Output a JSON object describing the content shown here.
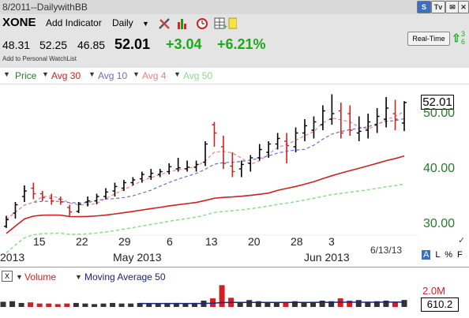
{
  "window": {
    "title": "8/2011--DailywithBB"
  },
  "window_buttons": {
    "s": "S",
    "tv": "Tv",
    "chat": "✉",
    "close": "✕"
  },
  "toolbar": {
    "symbol": "XONE",
    "add_indicator": "Add Indicator",
    "period": "Daily",
    "tools": [
      "wrench-screwdriver-icon",
      "bar-chart-icon",
      "alarm-clock-icon",
      "grid-add-icon",
      "sticky-note-icon"
    ]
  },
  "quote": {
    "open": "48.31",
    "high": "52.25",
    "low": "46.85",
    "last": "52.01",
    "change": "+3.04",
    "change_pct": "+6.21%",
    "watchlist_link": "Add to Personal WatchList",
    "realtime_button": "Real-Time",
    "realtime_small": [
      "3",
      "6"
    ],
    "up_color": "#1aaa1a"
  },
  "legend": {
    "price": {
      "label": "Price",
      "color": "#2a7a2a"
    },
    "avg30": {
      "label": "Avg 30",
      "color": "#cc2222"
    },
    "avg10": {
      "label": "Avg 10",
      "color": "#6a6ad8"
    },
    "avg4": {
      "label": "Avg 4",
      "color": "#f08080"
    },
    "avg50": {
      "label": "Avg 50",
      "color": "#88dd88"
    }
  },
  "main_chart": {
    "last_price_label": "52.01",
    "price_labels": [
      "50.00",
      "40.00",
      "30.00"
    ],
    "date_labels": [
      "15",
      "22",
      "29",
      "6",
      "13",
      "20",
      "28",
      "3"
    ],
    "month_labels": [
      "2013",
      "May 2013",
      "Jun 2013"
    ],
    "asof": "6/13/13",
    "scale_opts": {
      "a": "A",
      "l": "L",
      "pct": "%",
      "f": "F"
    }
  },
  "volume_panel": {
    "close_glyph": "X",
    "volume_label": "Volume",
    "ma_label": "Moving Average 50",
    "vol_color": "#cc2222",
    "ma_color": "#1a237e",
    "value_labels": [
      "2.0M",
      "610.2"
    ]
  },
  "chart_data": {
    "type": "ohlc",
    "x": [
      "4/11",
      "4/12",
      "4/15",
      "4/16",
      "4/17",
      "4/18",
      "4/19",
      "4/22",
      "4/23",
      "4/24",
      "4/25",
      "4/26",
      "4/29",
      "4/30",
      "5/1",
      "5/2",
      "5/3",
      "5/6",
      "5/7",
      "5/8",
      "5/9",
      "5/10",
      "5/13",
      "5/14",
      "5/15",
      "5/16",
      "5/17",
      "5/20",
      "5/21",
      "5/22",
      "5/23",
      "5/24",
      "5/28",
      "5/29",
      "5/30",
      "5/31",
      "6/3",
      "6/4",
      "6/5",
      "6/6",
      "6/7",
      "6/10",
      "6/11",
      "6/12",
      "6/13"
    ],
    "open": [
      29.6,
      32,
      35,
      36.5,
      35.5,
      34.7,
      34.5,
      33,
      32.3,
      34,
      34.2,
      35,
      36,
      36.5,
      37.5,
      38.2,
      38.6,
      39,
      39.5,
      40,
      40,
      40.3,
      41.2,
      48,
      44,
      40.5,
      40,
      41,
      42,
      43,
      44.5,
      45,
      44,
      46.5,
      47,
      48,
      49,
      50.5,
      50,
      46.5,
      47,
      48,
      49,
      50,
      48.3
    ],
    "high": [
      31.5,
      34,
      37,
      37.5,
      36,
      35.5,
      35,
      33.5,
      34,
      35,
      35.5,
      36.5,
      37.5,
      38,
      38.5,
      39.5,
      40,
      40,
      41,
      42,
      41.5,
      41.5,
      45,
      48.5,
      46,
      43,
      41.5,
      42.5,
      44.5,
      45,
      46.5,
      46.5,
      47.5,
      49,
      49.5,
      51.5,
      53.5,
      52,
      51.5,
      49.5,
      50,
      51,
      53,
      52.5,
      52.25
    ],
    "low": [
      29.3,
      31,
      34,
      34.5,
      34.2,
      33.5,
      33.5,
      31.5,
      32,
      33.2,
      33.6,
      34.5,
      35,
      36,
      37,
      37.5,
      38,
      38.5,
      39,
      39.5,
      39.5,
      39.5,
      40.5,
      44,
      40,
      38.5,
      38.5,
      39.5,
      41.5,
      42,
      43.5,
      41,
      43,
      45,
      45.5,
      47,
      48,
      45.5,
      46,
      45,
      45.5,
      46.5,
      47.5,
      47,
      46.85
    ],
    "close": [
      30.8,
      33.5,
      36,
      35.5,
      34.8,
      34.2,
      34,
      32.2,
      33.6,
      34.2,
      35,
      35.8,
      36.8,
      37.5,
      38,
      39,
      39.2,
      39.5,
      40.4,
      40.2,
      40.3,
      40.8,
      44.5,
      46.5,
      41,
      39.5,
      40.8,
      42,
      43.5,
      44.5,
      45.5,
      44.2,
      46.5,
      47.8,
      48.5,
      50.5,
      50,
      46.5,
      47,
      46.8,
      48.5,
      49.5,
      51,
      49,
      52.01
    ],
    "volume": [
      0.45,
      0.5,
      0.35,
      0.4,
      0.3,
      0.3,
      0.25,
      0.3,
      0.35,
      0.3,
      0.25,
      0.3,
      0.35,
      0.3,
      0.3,
      0.35,
      0.3,
      0.3,
      0.35,
      0.35,
      0.3,
      0.35,
      0.55,
      0.75,
      1.9,
      0.8,
      0.45,
      0.6,
      0.5,
      0.45,
      0.4,
      0.45,
      0.5,
      0.4,
      0.45,
      0.55,
      0.5,
      0.75,
      0.55,
      0.6,
      0.45,
      0.5,
      0.55,
      0.45,
      0.61
    ],
    "price_range": [
      27,
      55
    ],
    "volume_range": [
      0,
      2.2
    ]
  }
}
